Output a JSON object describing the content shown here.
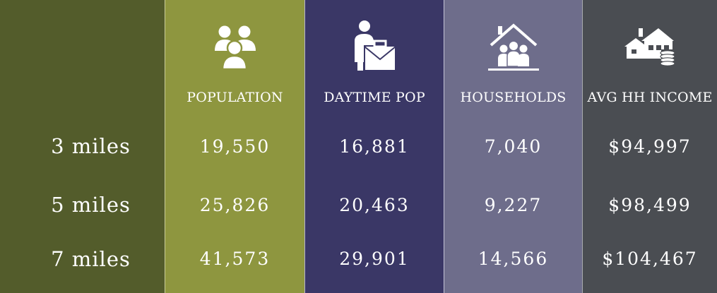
{
  "rows": [
    {
      "label": "3 miles"
    },
    {
      "label": "5 miles"
    },
    {
      "label": "7 miles"
    }
  ],
  "columns": [
    {
      "header": "POPULATION",
      "icon": "people-group-icon",
      "values": [
        "19,550",
        "25,826",
        "41,573"
      ]
    },
    {
      "header": "DAYTIME POP",
      "icon": "worker-briefcase-icon",
      "values": [
        "16,881",
        "20,463",
        "29,901"
      ]
    },
    {
      "header": "HOUSEHOLDS",
      "icon": "house-family-icon",
      "values": [
        "7,040",
        "9,227",
        "14,566"
      ]
    },
    {
      "header": "AVG HH INCOME",
      "icon": "house-coins-icon",
      "values": [
        "$94,997",
        "$98,499",
        "$104,467"
      ]
    }
  ],
  "colors": {
    "label_column": "#535c2b",
    "population": "#8e963f",
    "daytime_pop": "#3a3766",
    "households": "#6e6d8b",
    "avg_hh_income": "#4a4d52"
  }
}
